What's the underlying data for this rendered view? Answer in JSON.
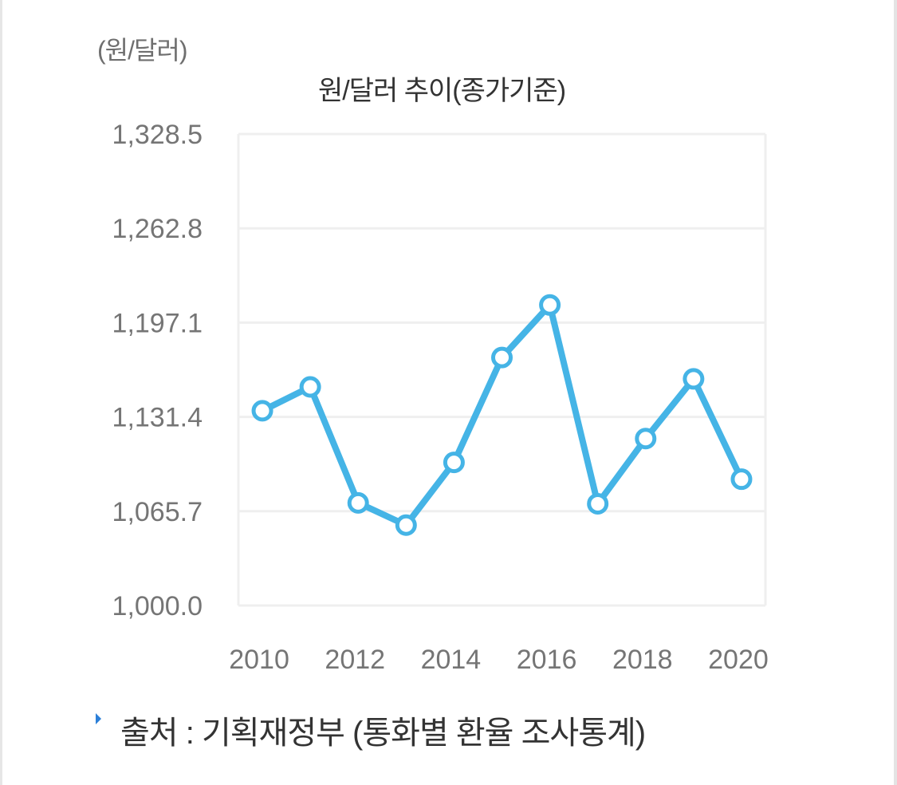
{
  "unit_label": "(원/달러)",
  "source": {
    "bullet_icon": "triangle-right-icon",
    "text": "출처 : 기획재정부 (통화별 환율 조사통계)"
  },
  "colors": {
    "line": "#45b4e6",
    "grid": "#efefef",
    "marker_fill": "#ffffff",
    "axis_text": "#757575"
  },
  "chart_data": {
    "type": "line",
    "title": "원/달러 추이(종가기준)",
    "xlabel": "",
    "ylabel": "(원/달러)",
    "x": [
      2010,
      2011,
      2012,
      2013,
      2014,
      2015,
      2016,
      2017,
      2018,
      2019,
      2020
    ],
    "series": [
      {
        "name": "원/달러",
        "values": [
          1135.7,
          1152.3,
          1071.5,
          1056.0,
          1099.7,
          1172.8,
          1209.4,
          1070.9,
          1116.3,
          1157.9,
          1088.0
        ]
      }
    ],
    "ylim": [
      1000.0,
      1328.5
    ],
    "yticks": [
      "1,000.0",
      "1,065.7",
      "1,131.4",
      "1,197.1",
      "1,262.8",
      "1,328.5"
    ],
    "xticks": [
      "2010",
      "2012",
      "2014",
      "2016",
      "2018",
      "2020"
    ],
    "grid": true,
    "legend": "none"
  }
}
